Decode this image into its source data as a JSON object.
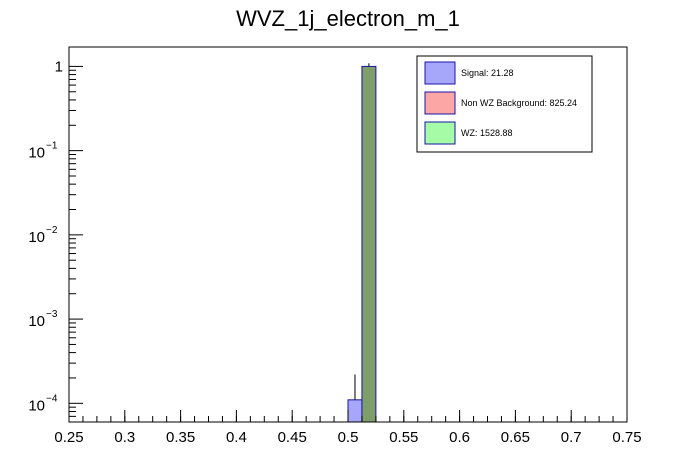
{
  "chart_data": {
    "type": "bar",
    "title": "WVZ_1j_electron_m_1",
    "xlabel": "",
    "ylabel": "",
    "xlim": [
      0.25,
      0.75
    ],
    "ylim": [
      6e-05,
      1.7
    ],
    "y_scale": "log",
    "bin_width": 0.0125,
    "grid": false,
    "legend_position": "top-right",
    "x_tick_labels": [
      "0.25",
      "0.3",
      "0.35",
      "0.4",
      "0.45",
      "0.5",
      "0.55",
      "0.6",
      "0.65",
      "0.7",
      "0.75"
    ],
    "x_tick_values": [
      0.25,
      0.3,
      0.35,
      0.4,
      0.45,
      0.5,
      0.55,
      0.6,
      0.65,
      0.7,
      0.75
    ],
    "y_ticks": [
      {
        "value": 1,
        "base": "1",
        "exp": ""
      },
      {
        "value": 0.1,
        "base": "10",
        "exp": "−1"
      },
      {
        "value": 0.01,
        "base": "10",
        "exp": "−2"
      },
      {
        "value": 0.001,
        "base": "10",
        "exp": "−3"
      },
      {
        "value": 0.0001,
        "base": "10",
        "exp": "−4"
      }
    ],
    "series": [
      {
        "name": "Signal",
        "legend_label": "Signal: 21.28",
        "color": "#a6a6fb",
        "edge_color": "#1515a8",
        "bins": [
          {
            "x0": 0.5,
            "x1": 0.5125,
            "value": 0.00011,
            "err_high": 0.00022
          }
        ]
      },
      {
        "name": "WZ",
        "legend_label": "WZ: 1528.88",
        "color": "#7e9f6a",
        "edge_color": "#1515a8",
        "bins": [
          {
            "x0": 0.5125,
            "x1": 0.525,
            "value": 1.0,
            "err_high": 1.09
          }
        ]
      }
    ],
    "legend": [
      {
        "label": "Signal: 21.28",
        "color": "#a6a6fb",
        "edge": "#1515a8"
      },
      {
        "label": "Non WZ Background: 825.24",
        "color": "#fca6a6",
        "edge": "#1515a8"
      },
      {
        "label": "WZ: 1528.88",
        "color": "#a6fca6",
        "edge": "#1515a8"
      }
    ]
  }
}
